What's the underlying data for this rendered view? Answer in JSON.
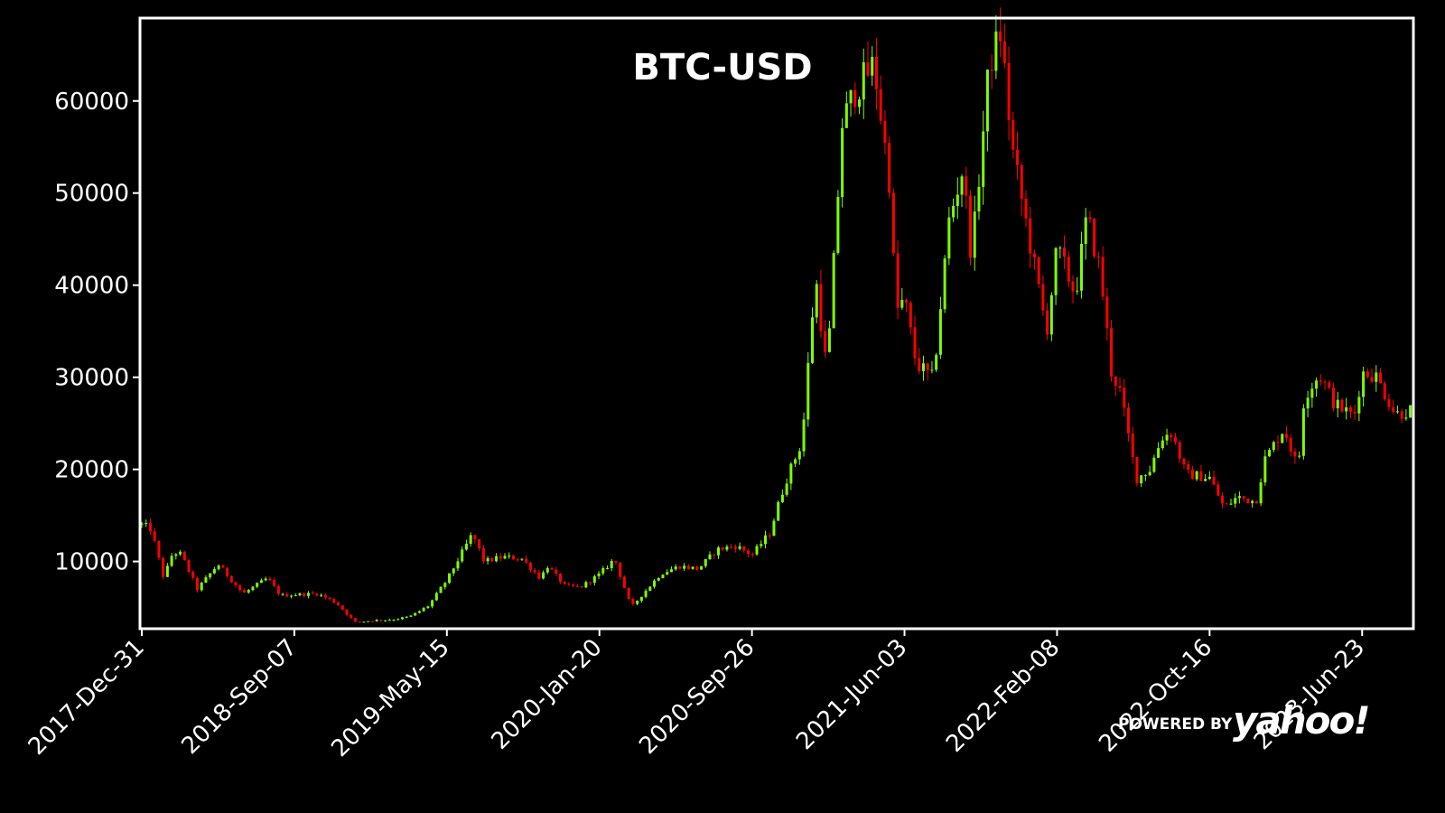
{
  "chart_data": {
    "type": "candlestick",
    "title": "BTC-USD",
    "xlabel": "",
    "ylabel": "",
    "x_range": [
      "2017-12-31",
      "2023-09-15"
    ],
    "ylim": [
      2700,
      69000
    ],
    "y_ticks": [
      10000,
      20000,
      30000,
      40000,
      50000,
      60000
    ],
    "x_ticks": [
      "2017-Dec-31",
      "2018-Sep-07",
      "2019-May-15",
      "2020-Jan-20",
      "2020-Sep-26",
      "2021-Jun-03",
      "2022-Feb-08",
      "2022-Oct-16",
      "2023-Jun-23"
    ],
    "grid": false,
    "colors": {
      "up": "#7fff00",
      "down": "#ff0000",
      "background": "#000000",
      "frame": "#ffffff",
      "text": "#ffffff"
    },
    "approximate_close": {
      "dates": [
        "2017-12-31",
        "2018-01-15",
        "2018-02-05",
        "2018-02-20",
        "2018-03-05",
        "2018-04-01",
        "2018-05-05",
        "2018-06-15",
        "2018-07-25",
        "2018-08-15",
        "2018-09-07",
        "2018-10-15",
        "2018-11-15",
        "2018-12-15",
        "2019-01-15",
        "2019-02-15",
        "2019-03-15",
        "2019-04-15",
        "2019-05-15",
        "2019-06-26",
        "2019-07-15",
        "2019-08-15",
        "2019-09-15",
        "2019-10-15",
        "2019-10-27",
        "2019-11-25",
        "2019-12-20",
        "2020-01-20",
        "2020-02-14",
        "2020-03-12",
        "2020-03-30",
        "2020-04-30",
        "2020-05-30",
        "2020-06-30",
        "2020-07-31",
        "2020-08-31",
        "2020-09-26",
        "2020-10-25",
        "2020-11-20",
        "2020-12-17",
        "2021-01-08",
        "2021-01-27",
        "2021-02-21",
        "2021-03-13",
        "2021-04-14",
        "2021-05-12",
        "2021-05-19",
        "2021-06-03",
        "2021-06-22",
        "2021-07-20",
        "2021-08-15",
        "2021-09-06",
        "2021-09-21",
        "2021-10-20",
        "2021-11-08",
        "2021-11-26",
        "2021-12-20",
        "2022-01-22",
        "2022-02-08",
        "2022-03-10",
        "2022-03-29",
        "2022-04-20",
        "2022-05-09",
        "2022-05-20",
        "2022-06-18",
        "2022-07-10",
        "2022-07-30",
        "2022-08-15",
        "2022-09-07",
        "2022-10-16",
        "2022-11-09",
        "2022-11-30",
        "2022-12-31",
        "2023-01-14",
        "2023-02-15",
        "2023-03-10",
        "2023-03-20",
        "2023-04-14",
        "2023-05-10",
        "2023-06-10",
        "2023-06-23",
        "2023-07-14",
        "2023-08-17",
        "2023-09-15"
      ],
      "values": [
        14000,
        13500,
        8200,
        11000,
        10800,
        7000,
        9700,
        6500,
        8200,
        6300,
        6400,
        6500,
        5500,
        3400,
        3600,
        3700,
        4000,
        5200,
        8000,
        13000,
        10000,
        10500,
        10300,
        8200,
        9500,
        7300,
        7200,
        8600,
        10300,
        5000,
        6400,
        8700,
        9500,
        9200,
        11300,
        11700,
        10700,
        13100,
        18700,
        23000,
        41000,
        30500,
        57500,
        61000,
        64000,
        50000,
        37000,
        38500,
        31500,
        29800,
        47000,
        52600,
        43000,
        64000,
        67500,
        55000,
        46500,
        35000,
        44000,
        39000,
        47500,
        41500,
        30000,
        29200,
        19000,
        20000,
        23500,
        24000,
        19500,
        19100,
        15800,
        17000,
        16500,
        21000,
        24500,
        20000,
        28000,
        30300,
        27000,
        25800,
        30500,
        30300,
        26000,
        26500
      ]
    }
  },
  "logo": {
    "prefix": "POWERED BY",
    "brand": "yahoo!"
  }
}
